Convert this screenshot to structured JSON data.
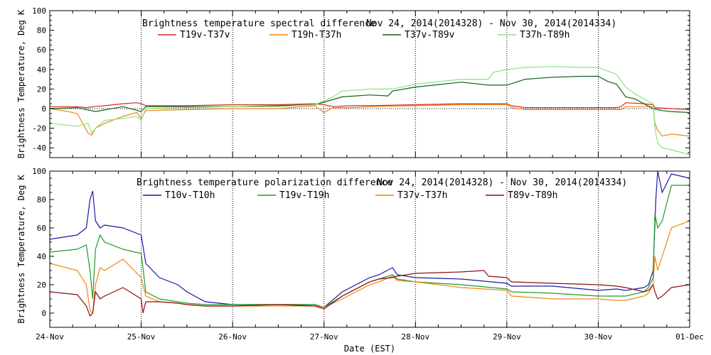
{
  "xaxis": {
    "title": "Date (EST)",
    "ticks": [
      {
        "x": 0,
        "label": "24-Nov"
      },
      {
        "x": 1,
        "label": "25-Nov"
      },
      {
        "x": 2,
        "label": "26-Nov"
      },
      {
        "x": 3,
        "label": "27-Nov"
      },
      {
        "x": 4,
        "label": "28-Nov"
      },
      {
        "x": 5,
        "label": "29-Nov"
      },
      {
        "x": 6,
        "label": "30-Nov"
      },
      {
        "x": 7,
        "label": "01-Dec"
      }
    ]
  },
  "chart_data": [
    {
      "type": "line",
      "title": "Brightness temperature spectral difference",
      "date_range": "Nov 24, 2014(2014328) - Nov 30, 2014(2014334)",
      "ylabel": "Brightness Temperature, Deg K",
      "xlim": [
        0,
        7
      ],
      "ylim": [
        -50,
        100
      ],
      "yticks": [
        -40,
        -20,
        0,
        20,
        40,
        60,
        80,
        100
      ],
      "vgrid": [
        1,
        2,
        3,
        4,
        5,
        6
      ],
      "legend_position": "top",
      "series": [
        {
          "name": "T19v-T37v",
          "color": "#d42a1e",
          "x": [
            0,
            0.3,
            0.4,
            0.48,
            0.6,
            0.8,
            0.95,
            1.0,
            1.05,
            1.5,
            2,
            2.5,
            2.9,
            3.0,
            3.1,
            3.3,
            3.5,
            4,
            4.5,
            4.8,
            5.0,
            5.05,
            5.2,
            5.5,
            5.8,
            6.0,
            6.2,
            6.25,
            6.3,
            6.5,
            6.6,
            6.62,
            6.8,
            7
          ],
          "y": [
            2,
            2,
            1,
            2,
            3,
            5,
            6,
            5,
            3,
            3,
            4,
            4,
            5,
            4,
            2,
            3,
            3,
            4,
            5,
            5,
            5,
            3,
            1,
            1,
            1,
            1,
            1,
            2,
            6,
            5,
            4,
            1,
            0,
            -1
          ]
        },
        {
          "name": "T19h-T37h",
          "color": "#ee8811",
          "x": [
            0,
            0.2,
            0.3,
            0.42,
            0.46,
            0.5,
            0.6,
            0.8,
            0.95,
            1.0,
            1.05,
            1.5,
            2,
            2.5,
            2.9,
            3.0,
            3.1,
            3.3,
            3.5,
            4,
            4.5,
            4.8,
            5.0,
            5.05,
            5.2,
            5.5,
            5.8,
            6.0,
            6.2,
            6.25,
            6.3,
            6.5,
            6.6,
            6.62,
            6.65,
            6.7,
            6.8,
            7
          ],
          "y": [
            0,
            -3,
            -5,
            -25,
            -27,
            -20,
            -15,
            -8,
            -4,
            -10,
            -2,
            -1,
            0,
            0,
            3,
            -4,
            1,
            1,
            2,
            3,
            4,
            4,
            4,
            1,
            -1,
            -1,
            -1,
            -1,
            -1,
            -1,
            2,
            2,
            2,
            -15,
            -22,
            -28,
            -26,
            -28
          ]
        },
        {
          "name": "T37v-T89v",
          "color": "#13611a",
          "x": [
            0,
            0.3,
            0.5,
            0.8,
            1.0,
            1.05,
            1.5,
            2,
            2.5,
            2.9,
            3.05,
            3.2,
            3.5,
            3.7,
            3.75,
            4,
            4.3,
            4.5,
            4.8,
            5.0,
            5.2,
            5.5,
            5.8,
            6.0,
            6.1,
            6.2,
            6.3,
            6.4,
            6.5,
            6.6,
            6.7,
            6.8,
            7
          ],
          "y": [
            0,
            1,
            -3,
            2,
            -3,
            2,
            2,
            2,
            3,
            4,
            8,
            12,
            14,
            13,
            18,
            22,
            25,
            27,
            24,
            24,
            30,
            32,
            33,
            33,
            28,
            25,
            12,
            10,
            5,
            0,
            -2,
            -3,
            -4
          ]
        },
        {
          "name": "T37h-T89h",
          "color": "#8ee37f",
          "x": [
            0,
            0.2,
            0.3,
            0.42,
            0.46,
            0.5,
            0.6,
            0.8,
            0.95,
            1.0,
            1.05,
            1.5,
            2,
            2.5,
            2.9,
            3.05,
            3.1,
            3.2,
            3.5,
            3.7,
            3.75,
            4,
            4.3,
            4.5,
            4.8,
            4.85,
            5.0,
            5.2,
            5.5,
            5.8,
            6.0,
            6.2,
            6.3,
            6.4,
            6.5,
            6.6,
            6.62,
            6.65,
            6.7,
            6.8,
            7
          ],
          "y": [
            -15,
            -17,
            -18,
            -15,
            -25,
            -20,
            -12,
            -10,
            -8,
            -12,
            0,
            1,
            2,
            2,
            4,
            10,
            12,
            18,
            20,
            20,
            20,
            25,
            28,
            30,
            30,
            37,
            40,
            42,
            43,
            42,
            42,
            35,
            22,
            15,
            10,
            5,
            -20,
            -35,
            -40,
            -42,
            -47
          ]
        }
      ]
    },
    {
      "type": "line",
      "title": "Brightness temperature polarization difference",
      "date_range": "Nov 24, 2014(2014328) - Nov 30, 2014(2014334)",
      "ylabel": "Brightness Temperature, Deg K",
      "xlim": [
        0,
        7
      ],
      "ylim": [
        -10,
        100
      ],
      "yticks": [
        0,
        20,
        40,
        60,
        80,
        100
      ],
      "vgrid": [
        1,
        2,
        3,
        4,
        5,
        6
      ],
      "legend_position": "top",
      "series": [
        {
          "name": "T10v-T10h",
          "color": "#1a1aa6",
          "x": [
            0,
            0.3,
            0.4,
            0.44,
            0.47,
            0.5,
            0.55,
            0.6,
            0.8,
            1.0,
            1.05,
            1.2,
            1.4,
            1.5,
            1.7,
            2,
            2.5,
            2.9,
            3.0,
            3.2,
            3.5,
            3.6,
            3.75,
            3.8,
            4.0,
            4.5,
            5.0,
            5.05,
            5.5,
            6.0,
            6.2,
            6.3,
            6.5,
            6.55,
            6.6,
            6.63,
            6.65,
            6.7,
            6.8,
            7
          ],
          "y": [
            52,
            55,
            60,
            80,
            86,
            65,
            60,
            62,
            60,
            55,
            35,
            25,
            20,
            15,
            8,
            6,
            6,
            6,
            4,
            15,
            25,
            27,
            32,
            27,
            25,
            24,
            21,
            19,
            19,
            16,
            17,
            16,
            18,
            20,
            30,
            80,
            100,
            85,
            98,
            95
          ]
        },
        {
          "name": "T19v-T19h",
          "color": "#22992a",
          "x": [
            0,
            0.3,
            0.4,
            0.44,
            0.47,
            0.5,
            0.55,
            0.6,
            0.8,
            1.0,
            1.05,
            1.2,
            1.4,
            1.5,
            1.7,
            2,
            2.5,
            2.9,
            3.0,
            3.2,
            3.5,
            3.6,
            3.75,
            3.8,
            4.0,
            4.5,
            5.0,
            5.05,
            5.5,
            6.0,
            6.2,
            6.3,
            6.5,
            6.55,
            6.6,
            6.62,
            6.65,
            6.7,
            6.8,
            7
          ],
          "y": [
            43,
            45,
            48,
            30,
            10,
            45,
            55,
            50,
            45,
            42,
            15,
            10,
            8,
            7,
            6,
            6,
            6,
            6,
            4,
            12,
            22,
            24,
            27,
            24,
            22,
            20,
            17,
            15,
            14,
            12,
            12,
            12,
            15,
            18,
            25,
            70,
            60,
            65,
            90,
            90
          ]
        },
        {
          "name": "T37v-T37h",
          "color": "#ee8811",
          "x": [
            0,
            0.3,
            0.4,
            0.44,
            0.47,
            0.5,
            0.55,
            0.6,
            0.8,
            1.0,
            1.05,
            1.2,
            1.4,
            1.5,
            1.7,
            2,
            2.5,
            2.9,
            3.0,
            3.2,
            3.5,
            3.6,
            3.75,
            3.8,
            4.0,
            4.5,
            5.0,
            5.05,
            5.5,
            6.0,
            6.2,
            6.3,
            6.5,
            6.55,
            6.6,
            6.62,
            6.65,
            6.7,
            6.8,
            7
          ],
          "y": [
            35,
            30,
            20,
            2,
            0,
            20,
            32,
            30,
            38,
            25,
            12,
            8,
            7,
            6,
            5,
            5,
            5,
            5,
            4,
            10,
            20,
            22,
            26,
            23,
            22,
            18,
            16,
            12,
            10,
            10,
            9,
            9,
            12,
            14,
            20,
            40,
            30,
            40,
            60,
            65
          ]
        },
        {
          "name": "T89v-T89h",
          "color": "#8b1010",
          "x": [
            0,
            0.3,
            0.4,
            0.44,
            0.47,
            0.5,
            0.55,
            0.6,
            0.8,
            1.0,
            1.02,
            1.05,
            1.2,
            1.4,
            1.5,
            1.7,
            2,
            2.5,
            2.9,
            3.0,
            3.2,
            3.5,
            3.6,
            3.75,
            3.8,
            4.0,
            4.5,
            4.75,
            4.8,
            5.0,
            5.05,
            5.5,
            6.0,
            6.2,
            6.3,
            6.5,
            6.55,
            6.6,
            6.62,
            6.65,
            6.7,
            6.8,
            7
          ],
          "y": [
            15,
            13,
            5,
            -2,
            0,
            15,
            10,
            12,
            18,
            10,
            0,
            8,
            8,
            7,
            6,
            5,
            5,
            6,
            5,
            3,
            12,
            22,
            24,
            25,
            26,
            28,
            29,
            30,
            26,
            25,
            22,
            21,
            20,
            19,
            18,
            15,
            16,
            20,
            15,
            10,
            12,
            18,
            20
          ]
        }
      ]
    }
  ]
}
